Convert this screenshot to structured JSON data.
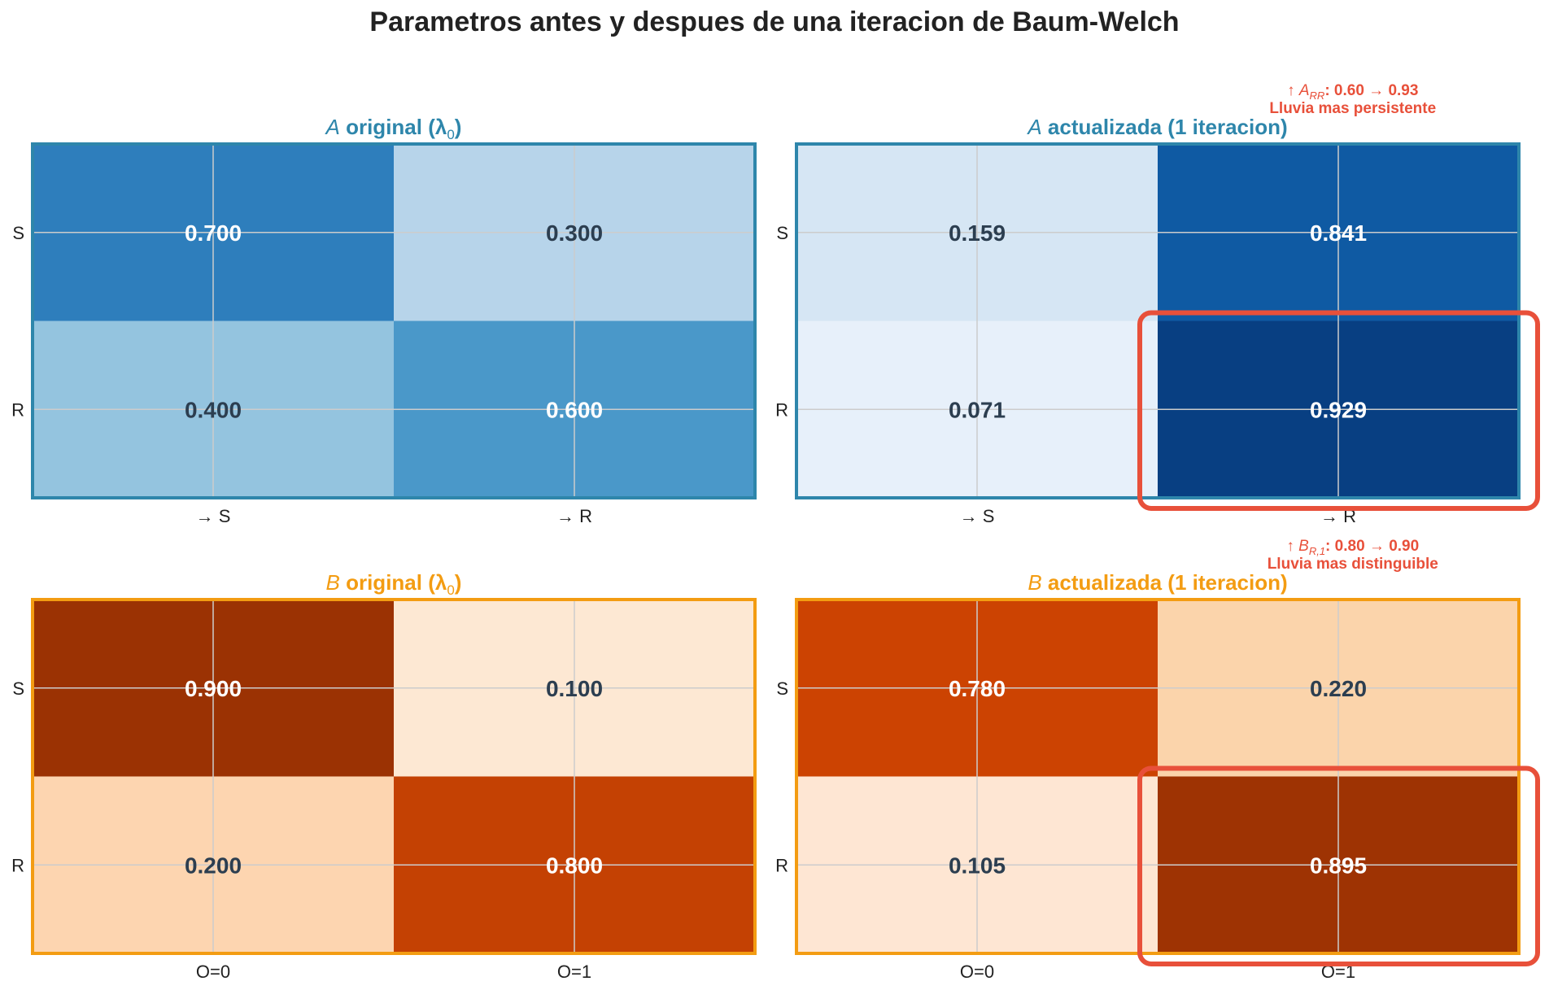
{
  "figure": {
    "title": "Parametros antes y despues de una iteracion de Baum-Welch"
  },
  "colors": {
    "blue_frame": "#2e86ab",
    "orange_frame": "#f39c12",
    "highlight": "#e8503a",
    "grid": "#cccccc",
    "dark_text": "#2c3e50",
    "light_text": "#ffffff"
  },
  "chart_data": [
    {
      "type": "heatmap",
      "id": "A_original",
      "title_var": "A",
      "title_text": "original (λ",
      "title_sub": "0",
      "title_close": ")",
      "rows": [
        "S",
        "R"
      ],
      "cols": [
        "→ S",
        "→ R"
      ],
      "values": [
        [
          0.7,
          0.3
        ],
        [
          0.4,
          0.6
        ]
      ],
      "labels": [
        [
          "0.700",
          "0.300"
        ],
        [
          "0.400",
          "0.600"
        ]
      ],
      "cell_colors": [
        [
          "#2e7ebc",
          "#b7d4ea"
        ],
        [
          "#94c4df",
          "#4a98c9"
        ]
      ],
      "colormap": "Blues",
      "frame_color": "#2e86ab",
      "title_color": "#2e86ab"
    },
    {
      "type": "heatmap",
      "id": "A_updated",
      "title_var": "A",
      "title_text": "actualizada (1 iteracion)",
      "rows": [
        "S",
        "R"
      ],
      "cols": [
        "→ S",
        "→ R"
      ],
      "values": [
        [
          0.159,
          0.841
        ],
        [
          0.071,
          0.929
        ]
      ],
      "labels": [
        [
          "0.159",
          "0.841"
        ],
        [
          "0.071",
          "0.929"
        ]
      ],
      "cell_colors": [
        [
          "#d6e6f4",
          "#0f5aa3"
        ],
        [
          "#e7f0fa",
          "#083f82"
        ]
      ],
      "colormap": "Blues",
      "frame_color": "#2e86ab",
      "title_color": "#2e86ab",
      "highlight_cell": [
        1,
        1
      ],
      "annotation": {
        "arrow": "↑",
        "var": "A",
        "sub": "RR",
        "text": ": 0.60 → 0.93",
        "line2": "Lluvia mas persistente"
      }
    },
    {
      "type": "heatmap",
      "id": "B_original",
      "title_var": "B",
      "title_text": "original (λ",
      "title_sub": "0",
      "title_close": ")",
      "rows": [
        "S",
        "R"
      ],
      "cols": [
        "O=0",
        "O=1"
      ],
      "values": [
        [
          0.9,
          0.1
        ],
        [
          0.2,
          0.8
        ]
      ],
      "labels": [
        [
          "0.900",
          "0.100"
        ],
        [
          "0.200",
          "0.800"
        ]
      ],
      "cell_colors": [
        [
          "#9b3203",
          "#fde8d3"
        ],
        [
          "#fdd5b0",
          "#c44103"
        ]
      ],
      "colormap": "Oranges",
      "frame_color": "#f39c12",
      "title_color": "#f39c12"
    },
    {
      "type": "heatmap",
      "id": "B_updated",
      "title_var": "B",
      "title_text": "actualizada (1 iteracion)",
      "rows": [
        "S",
        "R"
      ],
      "cols": [
        "O=0",
        "O=1"
      ],
      "values": [
        [
          0.78,
          0.22
        ],
        [
          0.105,
          0.895
        ]
      ],
      "labels": [
        [
          "0.780",
          "0.220"
        ],
        [
          "0.105",
          "0.895"
        ]
      ],
      "cell_colors": [
        [
          "#cc4302",
          "#fbd4ab"
        ],
        [
          "#fee6d3",
          "#9e3303"
        ]
      ],
      "colormap": "Oranges",
      "frame_color": "#f39c12",
      "title_color": "#f39c12",
      "highlight_cell": [
        1,
        1
      ],
      "annotation": {
        "arrow": "↑",
        "var": "B",
        "sub": "R,1",
        "text": ": 0.80 → 0.90",
        "line2": "Lluvia mas distinguible"
      }
    }
  ]
}
